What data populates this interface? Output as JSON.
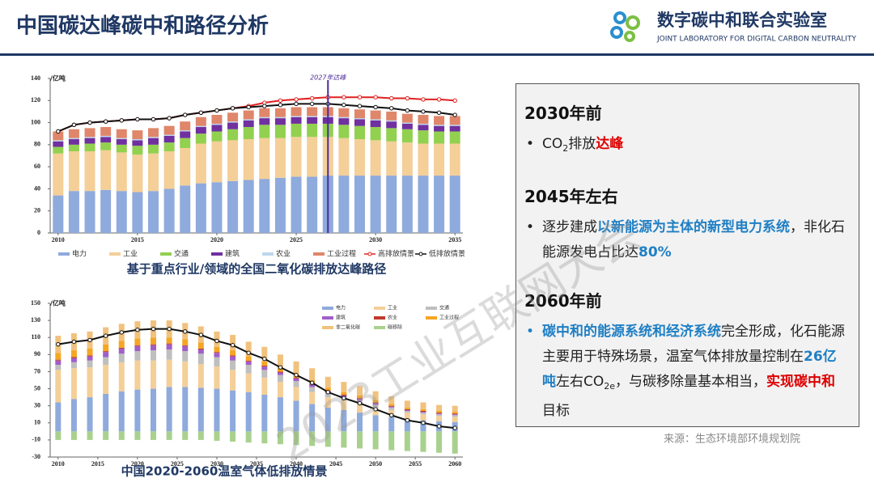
{
  "header": {
    "title": "中国碳达峰碳中和路径分析",
    "org": "数字碳中和联合实验室",
    "org_en": "JOINT LABORATORY FOR DIGITAL CARBON NEUTRALITY"
  },
  "watermark": "2023工业互联网大会",
  "chart_data": [
    {
      "type": "bar",
      "stacked": true,
      "title": "基于重点行业/领域的全国二氧化碳排放达峰路径",
      "y_label": "/亿吨",
      "x": [
        2010,
        2011,
        2012,
        2013,
        2014,
        2015,
        2016,
        2017,
        2018,
        2019,
        2020,
        2021,
        2022,
        2023,
        2024,
        2025,
        2026,
        2027,
        2028,
        2029,
        2030,
        2031,
        2032,
        2033,
        2034,
        2035
      ],
      "xlim": [
        2009.5,
        2035.5
      ],
      "xticks": [
        2010,
        2015,
        2020,
        2025,
        2030,
        2035
      ],
      "ylim": [
        0,
        140
      ],
      "yticks": [
        0,
        20,
        40,
        60,
        80,
        100,
        120,
        140
      ],
      "legend": "bottom",
      "annotation": {
        "text": "2027年达峰",
        "x": 2027
      },
      "series": [
        {
          "name": "电力",
          "color": "#8faadc",
          "values": [
            34,
            38,
            38,
            39,
            38,
            37,
            38,
            40,
            43,
            45,
            46,
            47,
            48,
            49,
            50,
            51,
            51,
            52,
            52,
            52,
            52,
            52,
            52,
            52,
            52,
            52
          ]
        },
        {
          "name": "工业",
          "color": "#f4cf98",
          "values": [
            38,
            36,
            36,
            36,
            35,
            34,
            34,
            34,
            34,
            36,
            37,
            37,
            37,
            37,
            36,
            36,
            36,
            35,
            34,
            33,
            32,
            31,
            30,
            29,
            29,
            29
          ]
        },
        {
          "name": "交通",
          "color": "#92d050",
          "values": [
            6,
            6,
            7,
            7,
            7,
            8,
            8,
            8,
            9,
            9,
            9,
            10,
            11,
            12,
            12,
            12,
            12,
            12,
            12,
            12,
            12,
            12,
            12,
            12,
            11,
            11
          ]
        },
        {
          "name": "建筑",
          "color": "#7030a0",
          "values": [
            5,
            5,
            5,
            5,
            5,
            5,
            6,
            6,
            6,
            6,
            6,
            6,
            6,
            6,
            6,
            6,
            6,
            6,
            6,
            6,
            6,
            6,
            5,
            5,
            5,
            5
          ]
        },
        {
          "name": "农业",
          "color": "#bdd7ee",
          "values": [
            1,
            1,
            1,
            1,
            1,
            1,
            1,
            1,
            1,
            1,
            1,
            1,
            1,
            1,
            1,
            1,
            1,
            1,
            1,
            1,
            1,
            1,
            1,
            1,
            1,
            1
          ]
        },
        {
          "name": "工业过程",
          "color": "#e0866a",
          "values": [
            8,
            8,
            8,
            8,
            8,
            8,
            8,
            8,
            8,
            8,
            8,
            8,
            8,
            8,
            8,
            8,
            8,
            8,
            8,
            8,
            8,
            8,
            8,
            8,
            8,
            8
          ]
        },
        {
          "name": "高排放情景",
          "kind": "line",
          "color": "#e02020",
          "values": [
            92,
            98,
            100,
            101,
            102,
            103,
            103,
            104,
            107,
            109,
            111,
            113,
            115,
            118,
            120,
            121,
            122,
            123,
            123,
            123,
            123,
            122,
            122,
            121,
            121,
            120
          ]
        },
        {
          "name": "低排放情景",
          "kind": "line",
          "color": "#111111",
          "values": [
            92,
            98,
            100,
            101,
            102,
            103,
            103,
            104,
            107,
            109,
            111,
            113,
            114,
            115,
            116,
            117,
            117,
            117,
            116,
            115,
            114,
            113,
            111,
            110,
            109,
            107
          ]
        }
      ]
    },
    {
      "type": "bar",
      "stacked": true,
      "title": "中国2020-2060温室气体低排放情景",
      "y_label": "/亿吨",
      "x": [
        2010,
        2012,
        2014,
        2016,
        2018,
        2020,
        2022,
        2024,
        2026,
        2028,
        2030,
        2032,
        2034,
        2036,
        2038,
        2040,
        2042,
        2044,
        2046,
        2048,
        2050,
        2052,
        2054,
        2056,
        2058,
        2060
      ],
      "xlim": [
        2009,
        2061
      ],
      "xticks": [
        2010,
        2015,
        2020,
        2025,
        2030,
        2035,
        2040,
        2045,
        2050,
        2055,
        2060
      ],
      "ylim": [
        -30,
        150
      ],
      "yticks": [
        -30,
        -10,
        10,
        30,
        50,
        70,
        90,
        110,
        130,
        150
      ],
      "legend": "inside",
      "series": [
        {
          "name": "电力",
          "color": "#8faadc",
          "values": [
            34,
            38,
            40,
            44,
            47,
            49,
            50,
            52,
            52,
            51,
            50,
            48,
            46,
            43,
            40,
            36,
            32,
            28,
            25,
            22,
            19,
            17,
            15,
            13,
            12,
            11
          ]
        },
        {
          "name": "工业",
          "color": "#f4cf98",
          "values": [
            38,
            36,
            35,
            34,
            34,
            34,
            33,
            32,
            30,
            28,
            26,
            24,
            22,
            20,
            18,
            16,
            14,
            12,
            11,
            10,
            9,
            8,
            7,
            7,
            6,
            6
          ]
        },
        {
          "name": "交通",
          "color": "#bfbfbf",
          "values": [
            6,
            7,
            8,
            9,
            10,
            11,
            12,
            12,
            12,
            12,
            11,
            11,
            10,
            9,
            8,
            7,
            6,
            5,
            4,
            4,
            3,
            3,
            2,
            2,
            2,
            2
          ]
        },
        {
          "name": "建筑",
          "color": "#a05fc8",
          "values": [
            5,
            5,
            5,
            6,
            6,
            6,
            6,
            6,
            6,
            5,
            5,
            5,
            4,
            4,
            3,
            3,
            3,
            2,
            2,
            2,
            2,
            1,
            1,
            1,
            1,
            1
          ]
        },
        {
          "name": "农业",
          "color": "#c0392b",
          "values": [
            1,
            1,
            1,
            1,
            1,
            1,
            1,
            1,
            1,
            1,
            1,
            1,
            1,
            1,
            1,
            1,
            1,
            1,
            1,
            1,
            1,
            1,
            1,
            1,
            1,
            1
          ]
        },
        {
          "name": "工业过程",
          "color": "#f5a623",
          "values": [
            8,
            8,
            8,
            8,
            8,
            8,
            8,
            7,
            7,
            7,
            6,
            6,
            5,
            5,
            4,
            4,
            4,
            3,
            3,
            3,
            3,
            2,
            2,
            2,
            2,
            2
          ]
        },
        {
          "name": "非二氧化碳",
          "color": "#f1c27d",
          "values": [
            20,
            20,
            20,
            20,
            20,
            20,
            20,
            20,
            19,
            19,
            18,
            18,
            17,
            17,
            16,
            15,
            14,
            13,
            12,
            11,
            10,
            9,
            8,
            8,
            7,
            7
          ]
        },
        {
          "name": "碳移除",
          "color": "#a9d18e",
          "values": [
            -10,
            -10,
            -10,
            -10,
            -10,
            -10,
            -10,
            -10,
            -10,
            -10,
            -11,
            -12,
            -13,
            -14,
            -15,
            -16,
            -17,
            -18,
            -19,
            -20,
            -21,
            -22,
            -23,
            -24,
            -25,
            -26
          ]
        },
        {
          "kind": "line",
          "color": "#111111",
          "values": [
            102,
            105,
            107,
            112,
            116,
            119,
            120,
            120,
            117,
            113,
            106,
            101,
            92,
            85,
            75,
            66,
            57,
            46,
            39,
            33,
            26,
            19,
            13,
            10,
            6,
            4
          ]
        }
      ]
    }
  ],
  "panel": [
    {
      "heading": "2030年前",
      "bullets": [
        [
          {
            "text": "CO"
          },
          {
            "text": "2",
            "style": "sub"
          },
          {
            "text": "排放"
          },
          {
            "text": "达峰",
            "style": "red"
          }
        ]
      ]
    },
    {
      "heading": "2045年左右",
      "bullets": [
        [
          {
            "text": "逐步建成"
          },
          {
            "text": "以新能源为主体的新型电力系统",
            "style": "blue"
          },
          {
            "text": "，非化石能源发电占比达"
          },
          {
            "text": "80%",
            "style": "blue"
          }
        ]
      ]
    },
    {
      "heading": "2060年前",
      "bullets": [
        [
          {
            "text": "碳中和的能源系统和经济系统",
            "style": "blue"
          },
          {
            "text": "完全形成，化石能源主要用于特殊场景，温室气体排放量控制在"
          },
          {
            "text": "26亿吨",
            "style": "blue"
          },
          {
            "text": "左右CO"
          },
          {
            "text": "2e",
            "style": "sub"
          },
          {
            "text": "，与碳移除量基本相当，"
          },
          {
            "text": "实现碳中和",
            "style": "red"
          },
          {
            "text": "目标"
          }
        ]
      ]
    }
  ],
  "source": "来源：生态环境部环境规划院"
}
